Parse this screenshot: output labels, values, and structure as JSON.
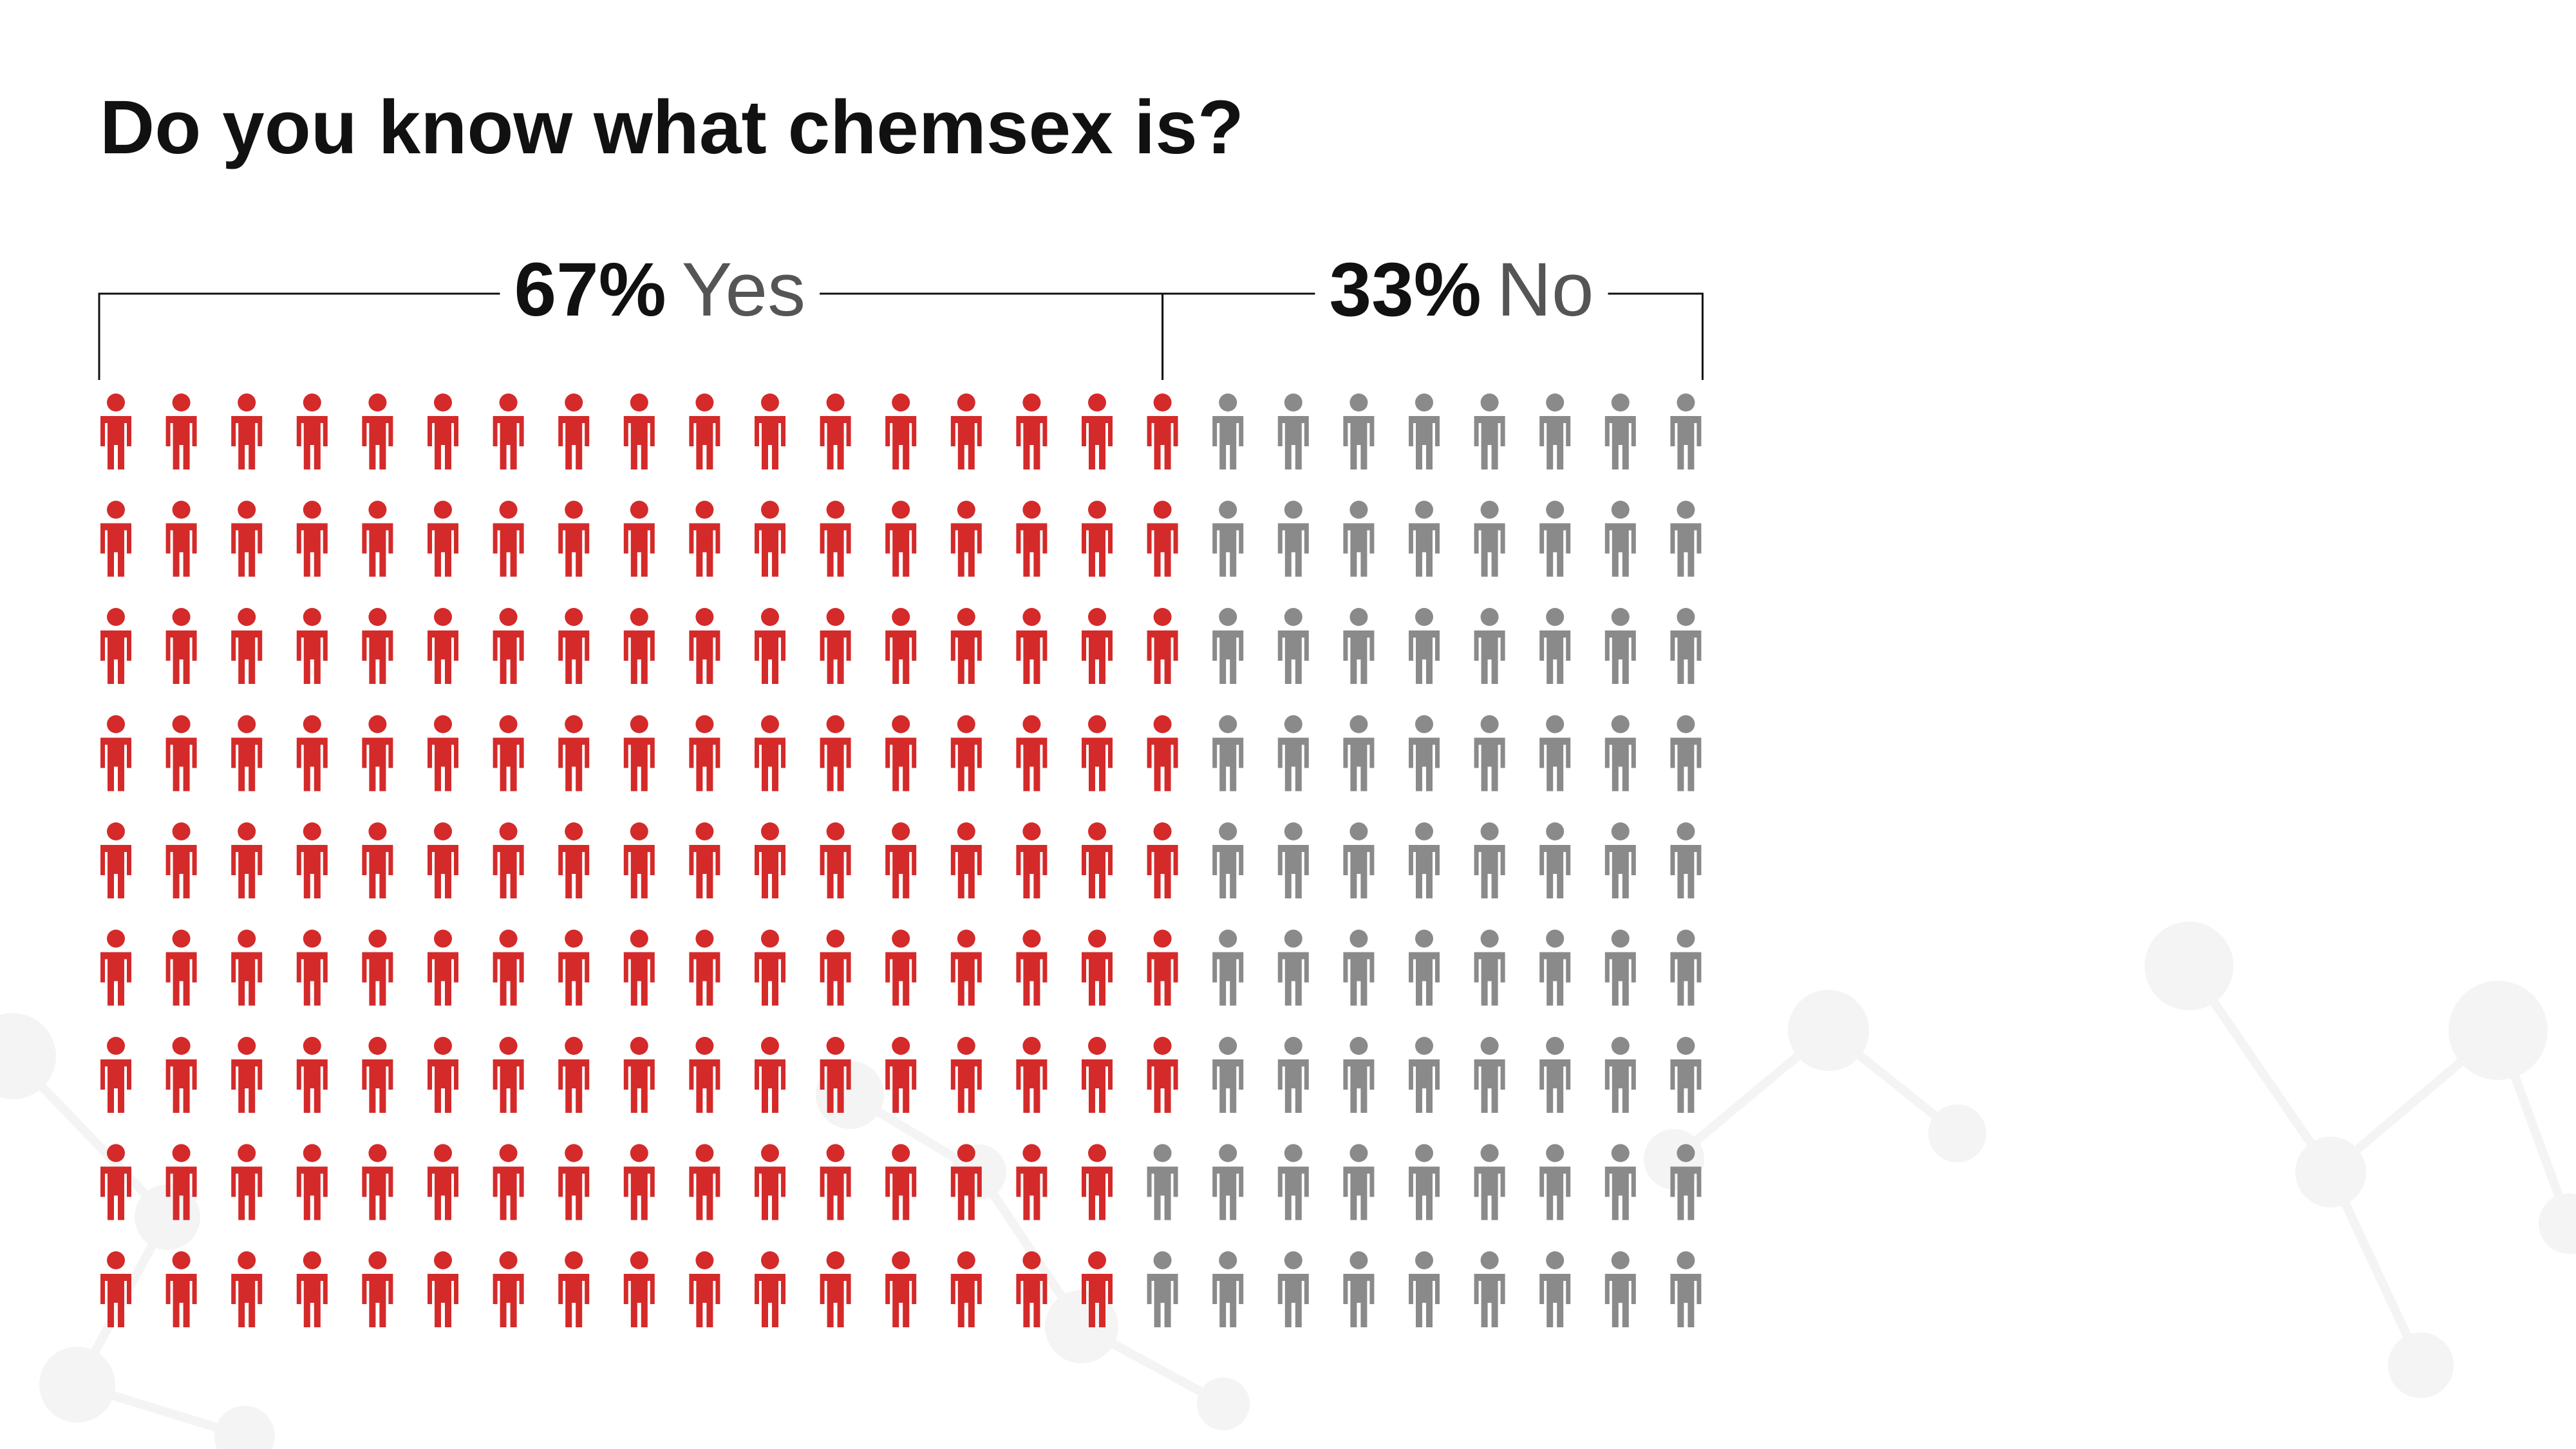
{
  "title": "Do you know what chemsex is?",
  "chart_data": {
    "type": "pictogram",
    "total_icons": 225,
    "columns": 25,
    "rows": 9,
    "series": [
      {
        "name": "Yes",
        "percent": 67,
        "percent_label": "67%",
        "color": "#d42a2a"
      },
      {
        "name": "No",
        "percent": 33,
        "percent_label": "33%",
        "color": "#8a8a8a"
      }
    ]
  }
}
